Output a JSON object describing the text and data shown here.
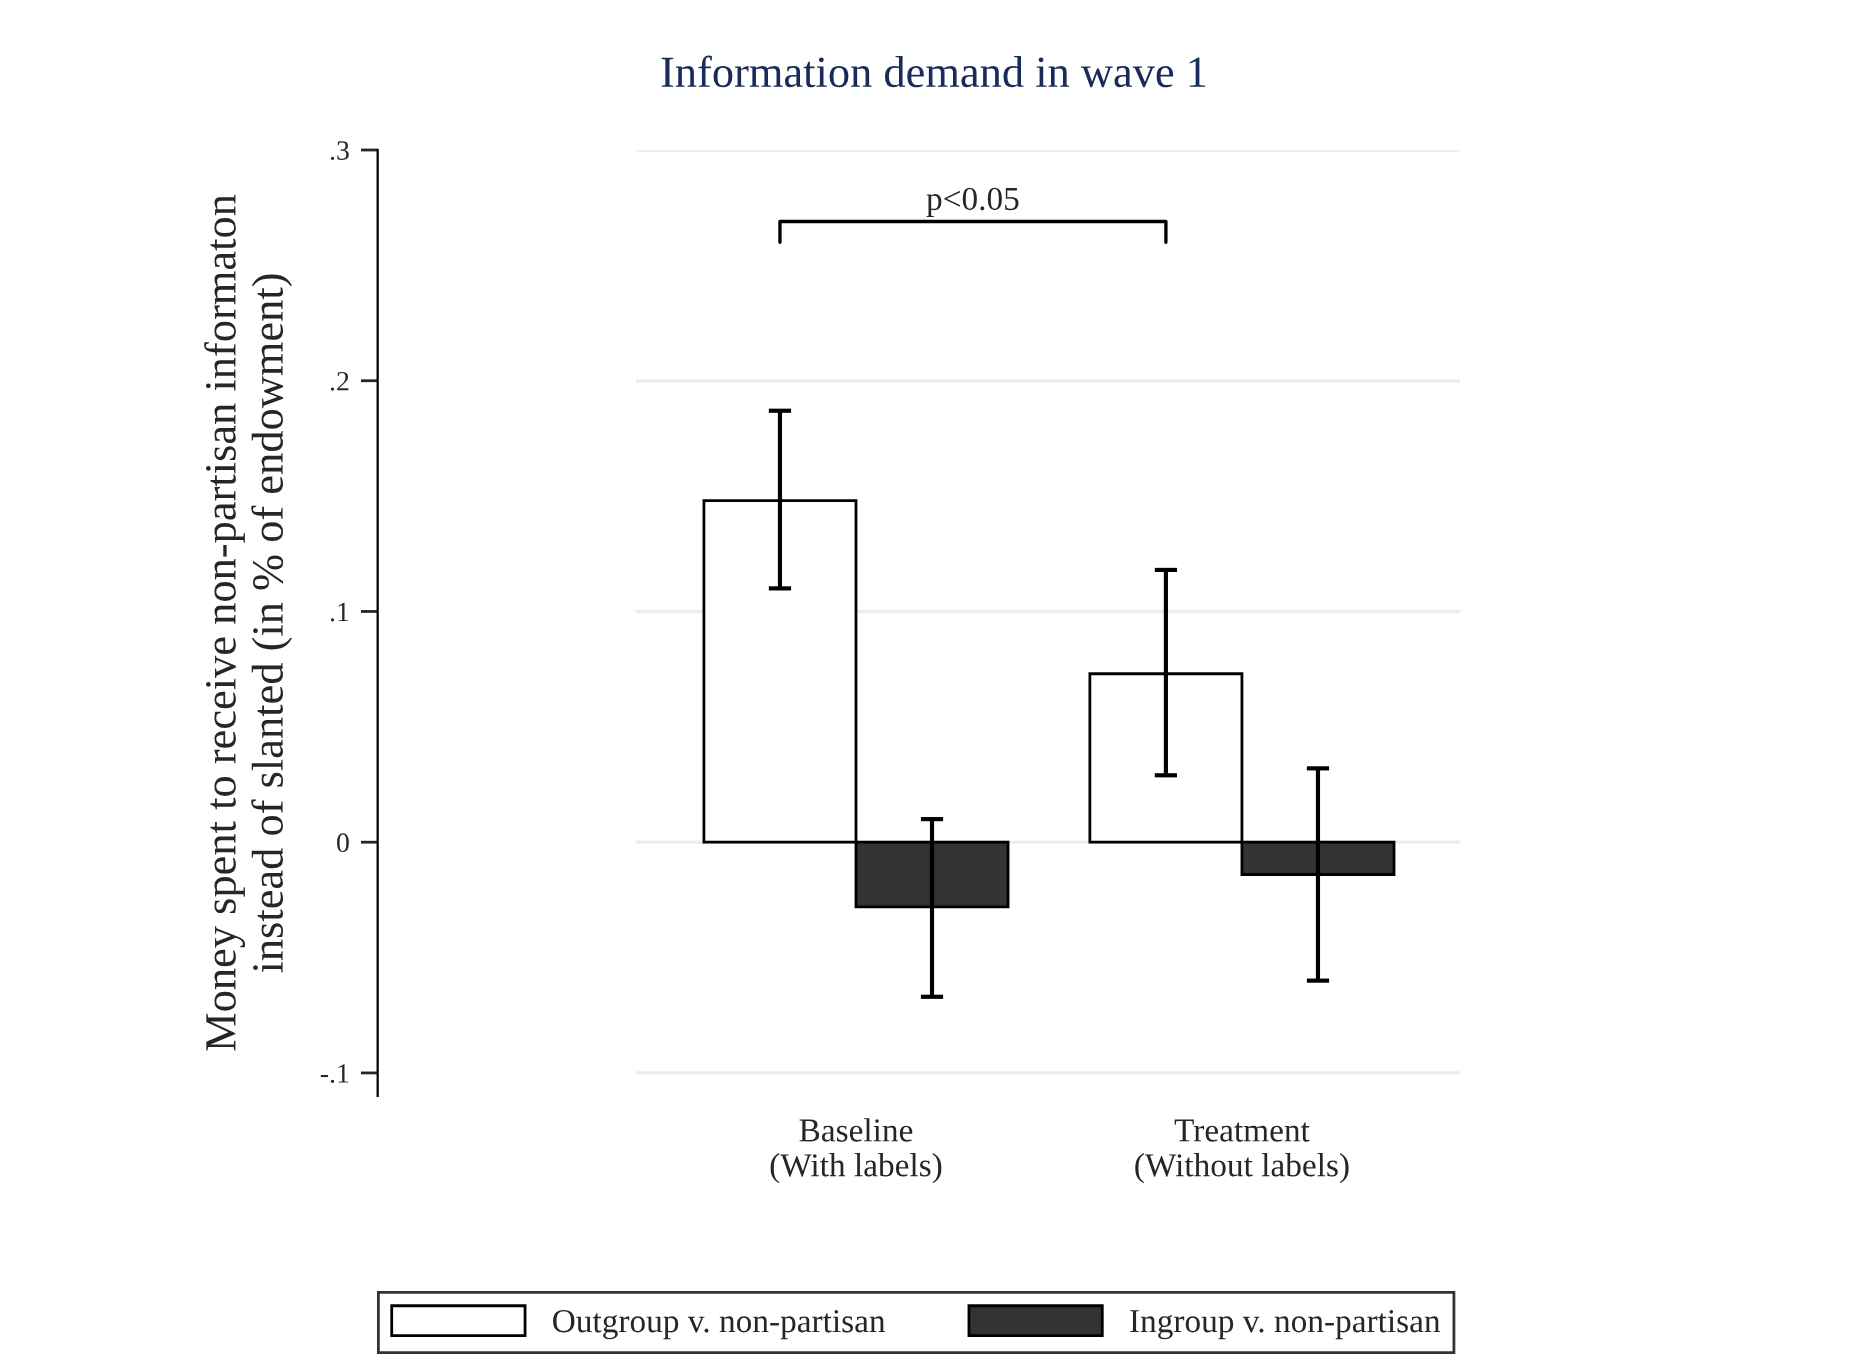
{
  "chart_data": {
    "type": "bar",
    "title": "Information demand in wave 1",
    "ylabel": "Money spent to receive non-partisan informaton\ninstead of slanted (in % of endowment)",
    "categories": [
      "Baseline\n(With labels)",
      "Treatment\n(Without labels)"
    ],
    "series": [
      {
        "name": "Outgroup v. non-partisan",
        "color": "#ffffff",
        "values": [
          0.148,
          0.073
        ],
        "errors": [
          [
            0.11,
            0.187
          ],
          [
            0.029,
            0.118
          ]
        ]
      },
      {
        "name": "Ingroup v. non-partisan",
        "color": "#333333",
        "values": [
          -0.028,
          -0.014
        ],
        "errors": [
          [
            -0.067,
            0.01
          ],
          [
            -0.06,
            0.032
          ]
        ]
      }
    ],
    "ylim": [
      -0.11,
      0.3
    ],
    "yticks": [
      {
        "value": -0.1,
        "label": "-.1"
      },
      {
        "value": 0,
        "label": "0"
      },
      {
        "value": 0.1,
        "label": ".1"
      },
      {
        "value": 0.2,
        "label": ".2"
      },
      {
        "value": 0.3,
        "label": ".3"
      }
    ],
    "grid": "y",
    "legend": "bottom",
    "annotations": [
      "p<0.05"
    ]
  }
}
